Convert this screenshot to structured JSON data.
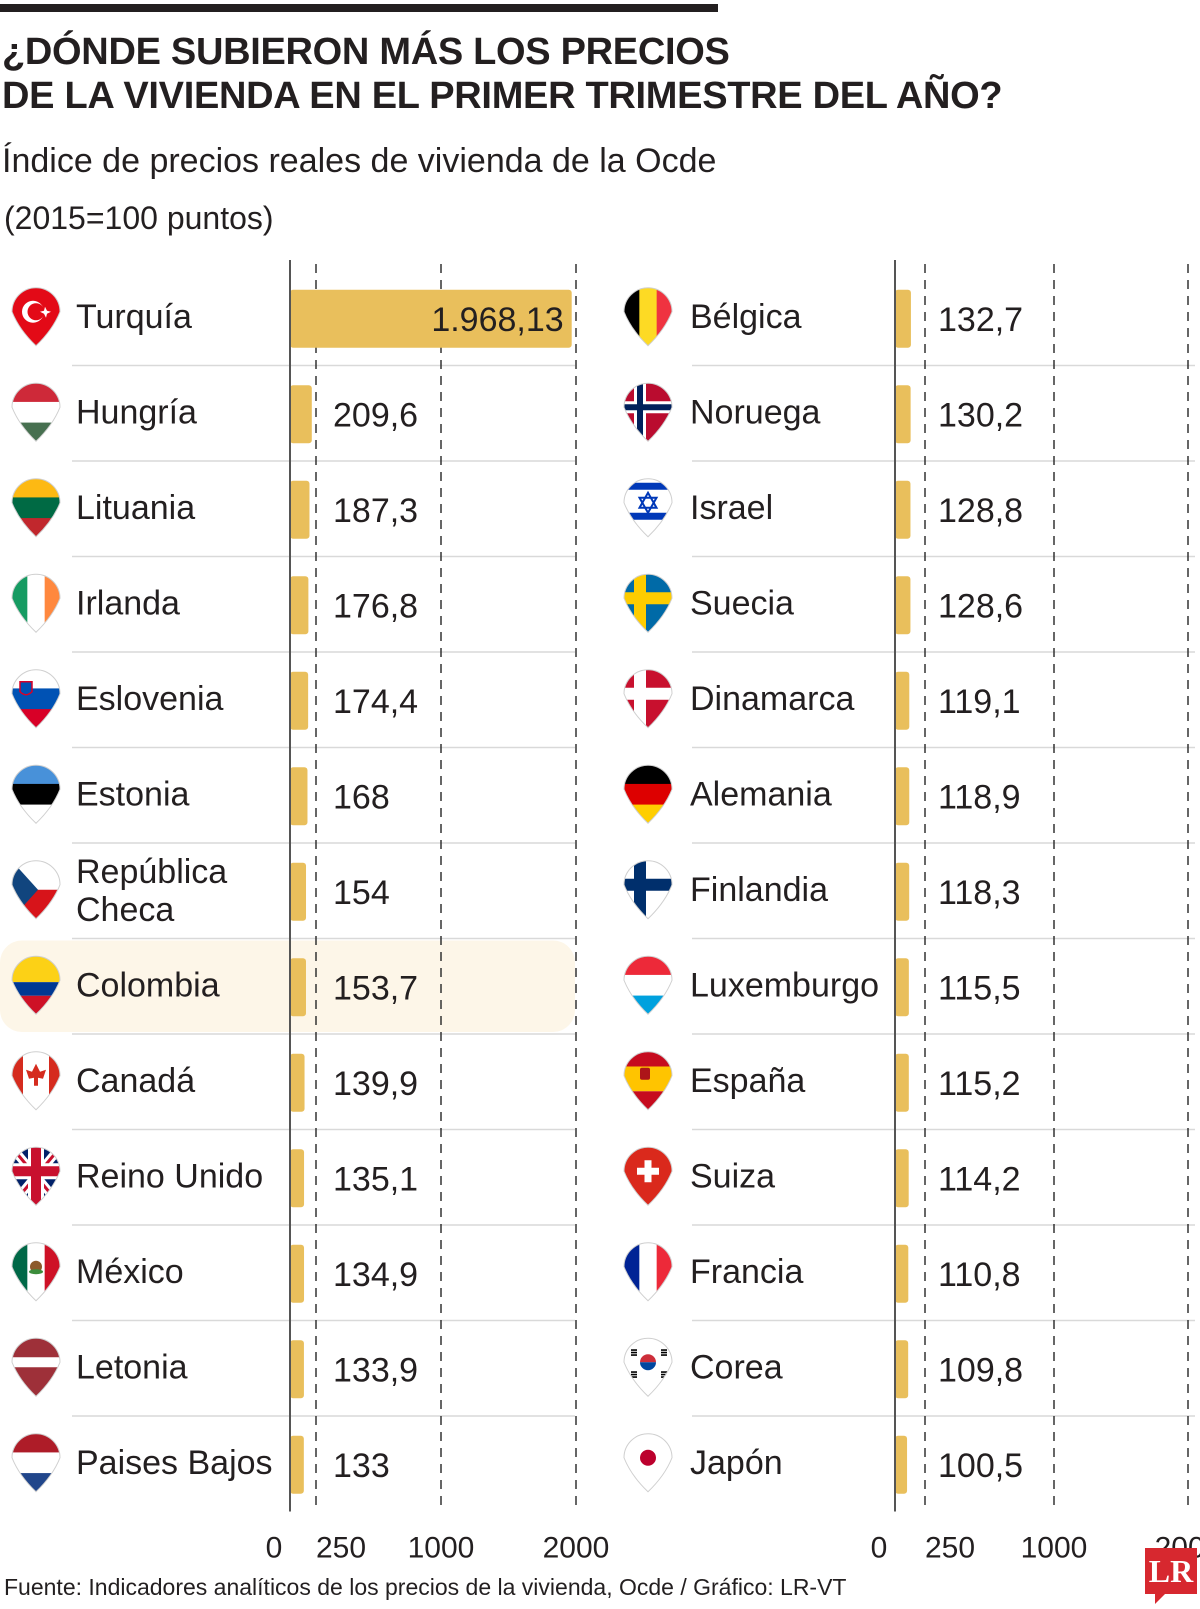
{
  "title_lines": [
    "¿DÓNDE SUBIERON MÁS LOS PRECIOS",
    "DE LA VIVIENDA EN EL PRIMER TRIMESTRE DEL AÑO?"
  ],
  "subtitle": "Índice de precios reales de vivienda de la Ocde",
  "unit_note": "(2015=100 puntos)",
  "source": "Fuente: Indicadores analíticos de los precios de la vivienda, Ocde / Gráfico: LR-VT",
  "logo_text": "LR",
  "colors": {
    "bar": "#e9bf5c",
    "highlight": "#fdf6e8",
    "text": "#231f20",
    "divider": "#d9d9d9",
    "axis": "#555555"
  },
  "chart_data": {
    "type": "bar",
    "orientation": "horizontal",
    "xlim": [
      0,
      2000
    ],
    "xticks": [
      "0",
      "250",
      "1000",
      "2000"
    ],
    "highlighted_category": "Colombia",
    "panels": [
      {
        "categories": [
          "Turquía",
          "Hungría",
          "Lituania",
          "Irlanda",
          "Eslovenia",
          "Estonia",
          "República Checa",
          "Colombia",
          "Canadá",
          "Reino Unido",
          "México",
          "Letonia",
          "Paises Bajos"
        ],
        "values": [
          1968.13,
          209.6,
          187.3,
          176.8,
          174.4,
          168,
          154,
          153.7,
          139.9,
          135.1,
          134.9,
          133.9,
          133
        ],
        "labels": [
          "1.968,13",
          "209,6",
          "187,3",
          "176,8",
          "174,4",
          "168",
          "154",
          "153,7",
          "139,9",
          "135,1",
          "134,9",
          "133,9",
          "133"
        ],
        "flag_icons": [
          "turkey-flag-icon",
          "hungary-flag-icon",
          "lithuania-flag-icon",
          "ireland-flag-icon",
          "slovenia-flag-icon",
          "estonia-flag-icon",
          "czech-flag-icon",
          "colombia-flag-icon",
          "canada-flag-icon",
          "uk-flag-icon",
          "mexico-flag-icon",
          "latvia-flag-icon",
          "netherlands-flag-icon"
        ]
      },
      {
        "categories": [
          "Bélgica",
          "Noruega",
          "Israel",
          "Suecia",
          "Dinamarca",
          "Alemania",
          "Finlandia",
          "Luxemburgo",
          "España",
          "Suiza",
          "Francia",
          "Corea",
          "Japón"
        ],
        "values": [
          132.7,
          130.2,
          128.8,
          128.6,
          119.1,
          118.9,
          118.3,
          115.5,
          115.2,
          114.2,
          110.8,
          109.8,
          100.5
        ],
        "labels": [
          "132,7",
          "130,2",
          "128,8",
          "128,6",
          "119,1",
          "118,9",
          "118,3",
          "115,5",
          "115,2",
          "114,2",
          "110,8",
          "109,8",
          "100,5"
        ],
        "flag_icons": [
          "belgium-flag-icon",
          "norway-flag-icon",
          "israel-flag-icon",
          "sweden-flag-icon",
          "denmark-flag-icon",
          "germany-flag-icon",
          "finland-flag-icon",
          "luxembourg-flag-icon",
          "spain-flag-icon",
          "switzerland-flag-icon",
          "france-flag-icon",
          "korea-flag-icon",
          "japan-flag-icon"
        ]
      }
    ]
  }
}
